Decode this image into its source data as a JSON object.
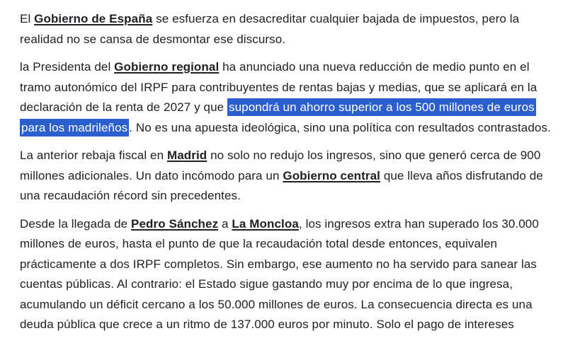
{
  "article": {
    "text_color": "#202124",
    "highlight_color": "#2b5fce",
    "highlight_text_color": "#ffffff",
    "paragraphs": [
      {
        "runs": [
          {
            "style": "plain",
            "text": "El "
          },
          {
            "style": "link",
            "text": "Gobierno de España"
          },
          {
            "style": "plain",
            "text": " se esfuerza en desacreditar cualquier bajada de impuestos, pero la realidad no se cansa de desmontar ese discurso."
          }
        ]
      },
      {
        "runs": [
          {
            "style": "plain",
            "text": "la Presidenta del "
          },
          {
            "style": "link",
            "text": "Gobierno regional"
          },
          {
            "style": "plain",
            "text": " ha anunciado una nueva reducción de medio punto en el tramo autonómico del IRPF para contribuyentes de rentas bajas y medias, que se aplicará en la declaración de la renta de 2027 y que "
          },
          {
            "style": "highlight",
            "text": "supondrá un ahorro superior a los 500 millones de euros para los madrileños"
          },
          {
            "style": "plain",
            "text": ". No es una apuesta ideológica, sino una política con resultados contrastados."
          }
        ]
      },
      {
        "runs": [
          {
            "style": "plain",
            "text": "La anterior rebaja fiscal en "
          },
          {
            "style": "link",
            "text": "Madrid"
          },
          {
            "style": "plain",
            "text": " no solo no redujo los ingresos, sino que generó cerca de 900 millones adicionales. Un dato incómodo para un "
          },
          {
            "style": "link",
            "text": "Gobierno central"
          },
          {
            "style": "plain",
            "text": " que lleva años disfrutando de una recaudación récord sin precedentes."
          }
        ]
      },
      {
        "runs": [
          {
            "style": "plain",
            "text": "Desde la llegada de "
          },
          {
            "style": "link",
            "text": "Pedro Sánchez"
          },
          {
            "style": "plain",
            "text": " a "
          },
          {
            "style": "link",
            "text": "La Moncloa"
          },
          {
            "style": "plain",
            "text": ", los ingresos extra han superado los 30.000 millones de euros, hasta el punto de que la recaudación total desde entonces, equivalen prácticamente a dos IRPF completos. Sin embargo, ese aumento no ha servido para sanear las cuentas públicas. Al contrario: el Estado sigue gastando muy por encima de lo que ingresa, acumulando un déficit cercano a los 50.000 millones de euros. La consecuencia directa es una deuda pública que crece a un ritmo de 137.000 euros por minuto. Solo el pago de intereses"
          }
        ]
      }
    ]
  }
}
